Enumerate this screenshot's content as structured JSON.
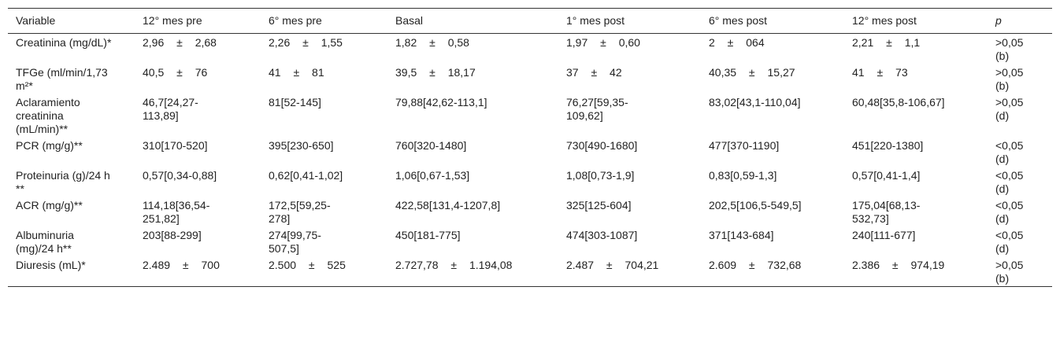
{
  "table": {
    "header": [
      "Variable",
      "12° mes pre",
      "6° mes pre",
      "Basal",
      "1° mes post",
      "6° mes post",
      "12° mes post",
      "p"
    ],
    "rows": [
      [
        "Creatinina (mg/dL)*",
        "2,96 ± 2,68",
        "2,26 ± 1,55",
        "1,82 ± 0,58",
        "1,97 ± 0,60",
        "2 ± 064",
        "2,21 ± 1,1",
        ">0,05 (b)"
      ],
      [
        "TFGe (ml/min/1,73 m²*",
        "40,5 ± 76",
        "41 ± 81",
        "39,5 ± 18,17",
        "37 ± 42",
        "40,35 ± 15,27",
        "41 ± 73",
        ">0,05 (b)"
      ],
      [
        "Aclaramiento creatinina (mL/min)**",
        "46,7[24,27-113,89]",
        "81[52-145]",
        "79,88[42,62-113,1]",
        "76,27[59,35-109,62]",
        "83,02[43,1-110,04]",
        "60,48[35,8-106,67]",
        ">0,05 (d)"
      ],
      [
        "PCR (mg/g)**",
        "310[170-520]",
        "395[230-650]",
        "760[320-1480]",
        "730[490-1680]",
        "477[370-1190]",
        "451[220-1380]",
        "<0,05 (d)"
      ],
      [
        "Proteinuria (g)/24 h **",
        "0,57[0,34-0,88]",
        "0,62[0,41-1,02]",
        "1,06[0,67-1,53]",
        "1,08[0,73-1,9]",
        "0,83[0,59-1,3]",
        "0,57[0,41-1,4]",
        "<0,05 (d)"
      ],
      [
        "ACR (mg/g)**",
        "114,18[36,54-251,82]",
        "172,5[59,25-278]",
        "422,58[131,4-1207,8]",
        "325[125-604]",
        "202,5[106,5-549,5]",
        "175,04[68,13-532,73]",
        "<0,05 (d)"
      ],
      [
        "Albuminuria (mg)/24 h**",
        "203[88-299]",
        "274[99,75-507,5]",
        "450[181-775]",
        "474[303-1087]",
        "371[143-684]",
        "240[111-677]",
        "<0,05 (d)"
      ],
      [
        "Diuresis (mL)*",
        "2.489 ± 700",
        "2.500 ± 525",
        "2.727,78 ± 1.194,08",
        "2.487 ± 704,21",
        "2.609 ± 732,68",
        "2.386 ± 974,19",
        ">0,05 (b)"
      ]
    ]
  }
}
